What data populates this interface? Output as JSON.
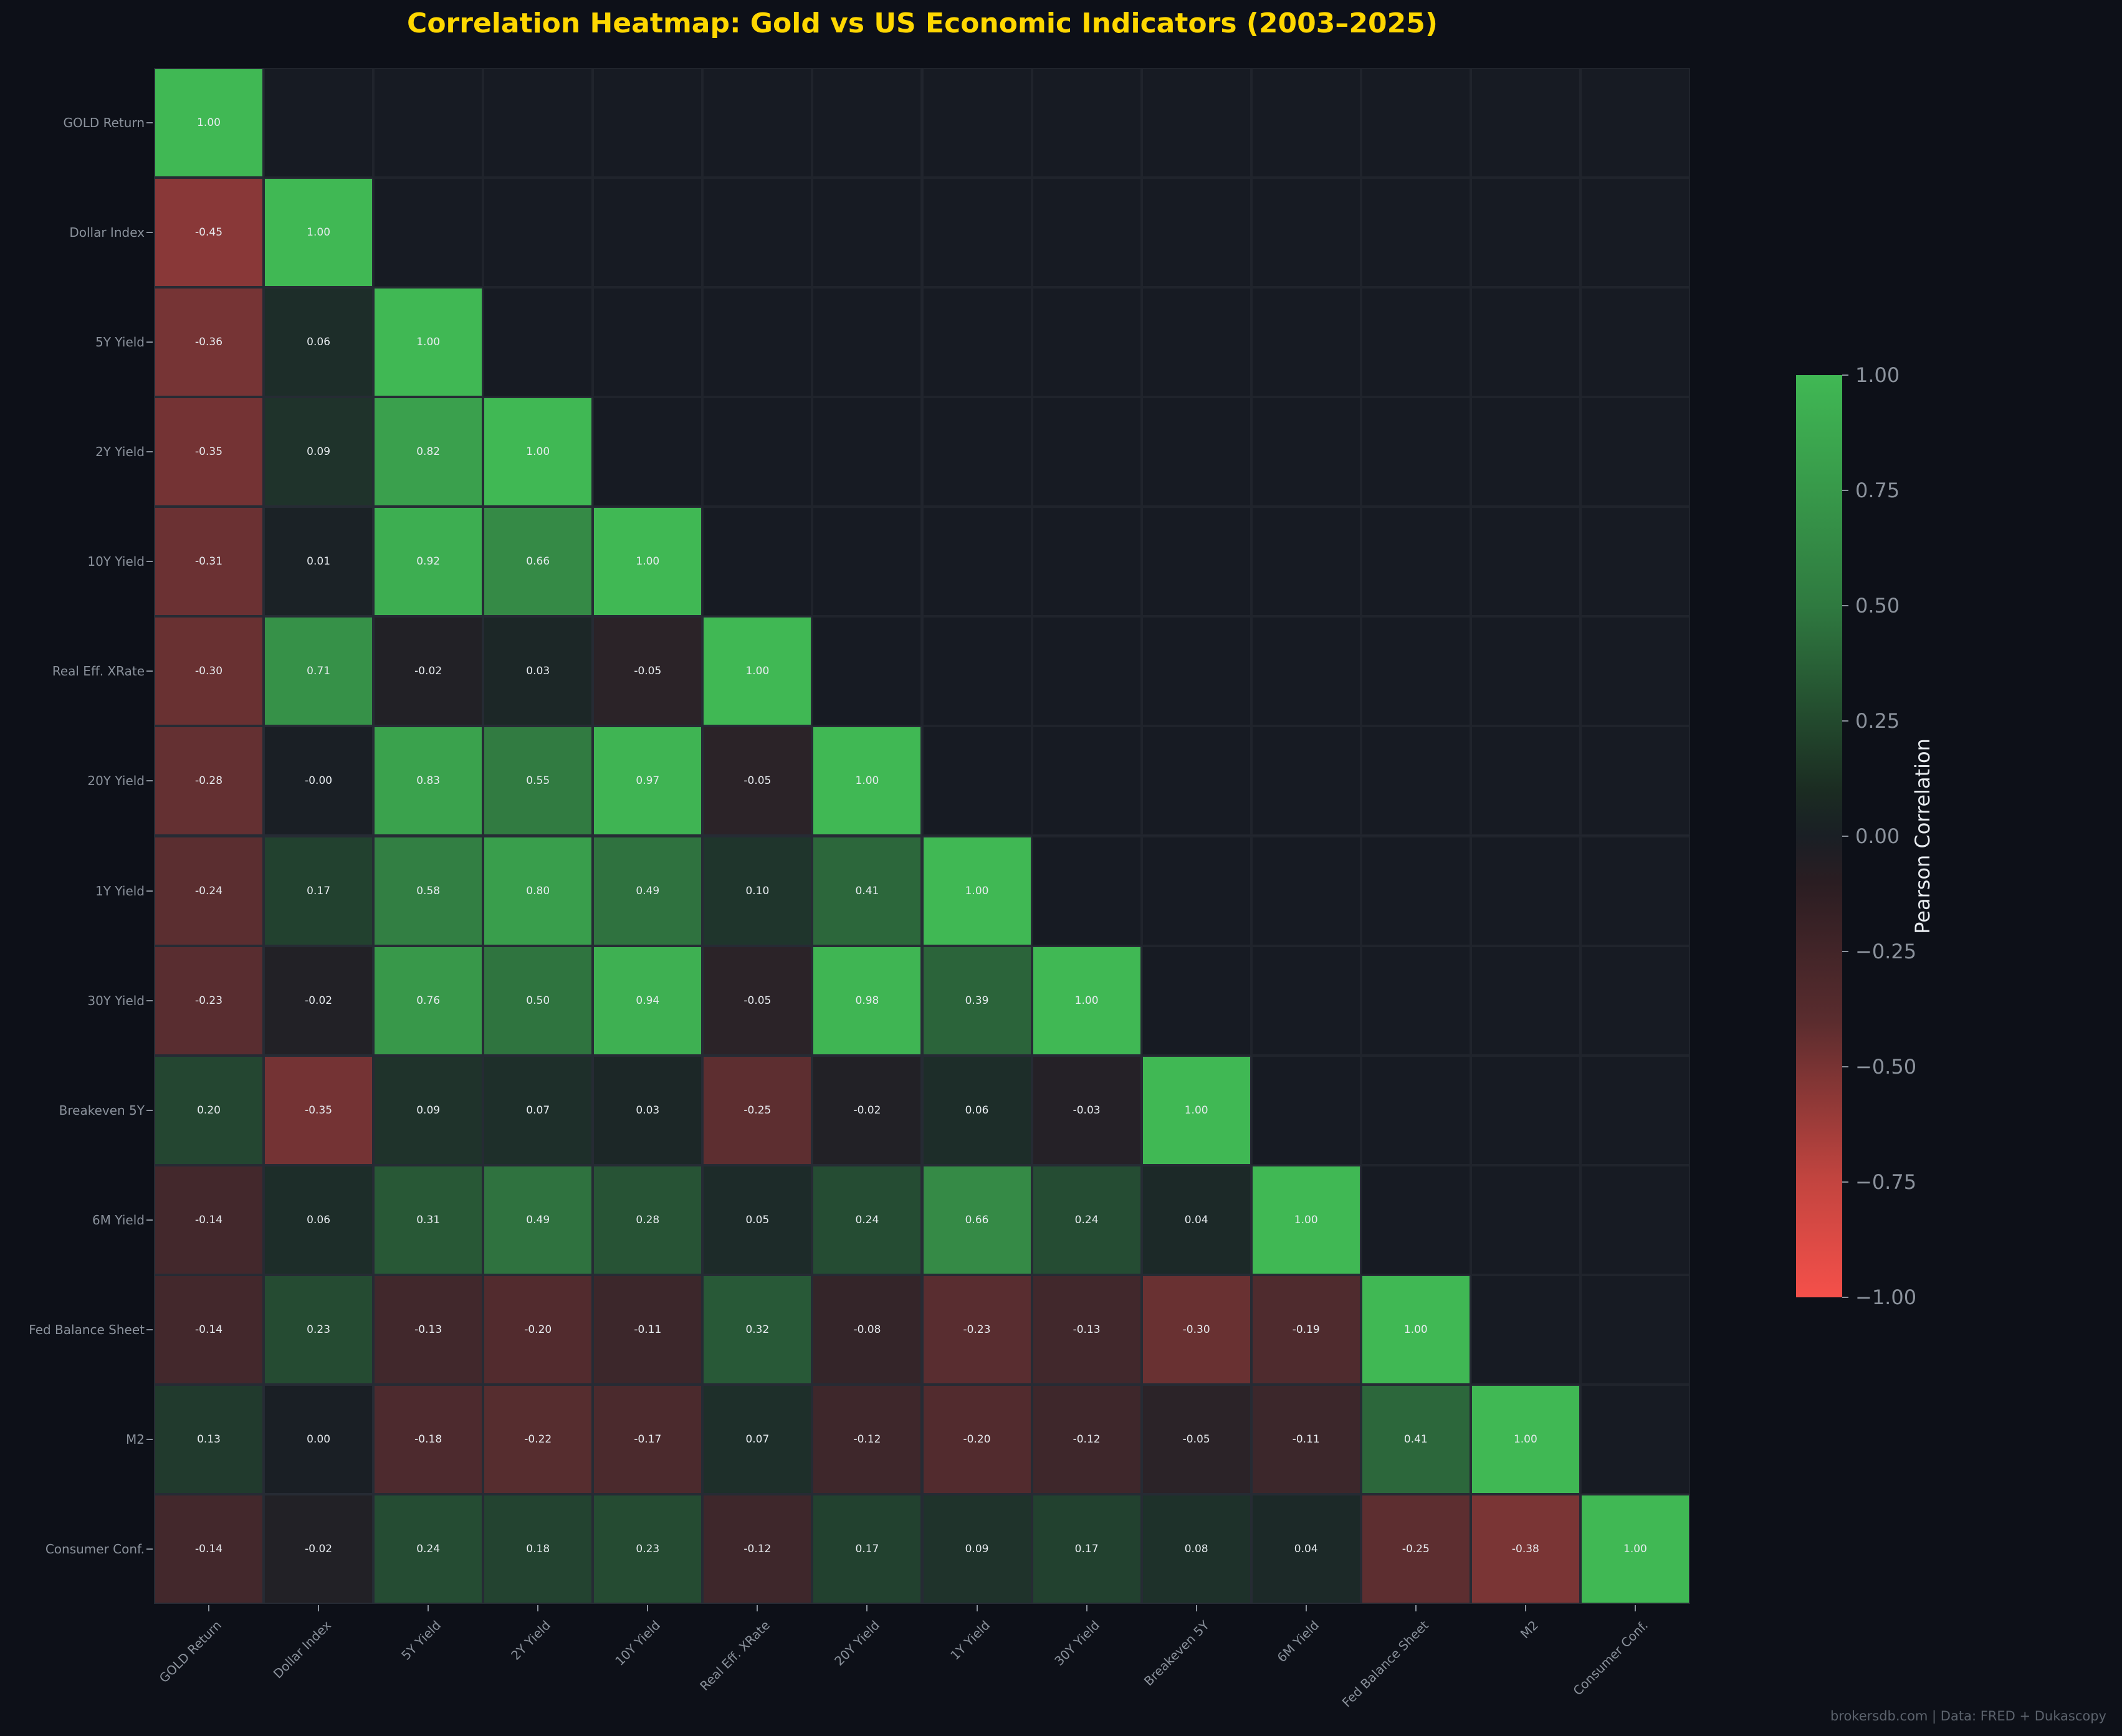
{
  "title": "Correlation Heatmap: Gold vs US Economic Indicators (2003–2025)",
  "footer": "brokersdb.com  |  Data: FRED + Dukascopy",
  "colors": {
    "background": "#0d1018",
    "title": "#ffd700",
    "masked_cell": "#171b23",
    "positive": "#40b854",
    "neutral": "#1a1f25",
    "negative": "#f5504a",
    "label": "#8b929c"
  },
  "colorbar": {
    "label": "Pearson Correlation",
    "ticks": [
      "1.00",
      "0.75",
      "0.50",
      "0.25",
      "0.00",
      "−0.25",
      "−0.50",
      "−0.75",
      "−1.00"
    ]
  },
  "chart_data": {
    "type": "heatmap",
    "title": "Correlation Heatmap: Gold vs US Economic Indicators (2003–2025)",
    "xlabel": "",
    "ylabel": "",
    "colorbar_label": "Pearson Correlation",
    "vrange": [
      -1,
      1
    ],
    "mask": "upper triangle (lower triangle + diagonal shown)",
    "labels": [
      "GOLD Return",
      "Dollar Index",
      "5Y Yield",
      "2Y Yield",
      "10Y Yield",
      "Real Eff. XRate",
      "20Y Yield",
      "1Y Yield",
      "30Y Yield",
      "Breakeven 5Y",
      "6M Yield",
      "Fed Balance Sheet",
      "M2",
      "Consumer Conf."
    ],
    "matrix": [
      [
        "1.00"
      ],
      [
        "-0.45",
        "1.00"
      ],
      [
        "-0.36",
        "0.06",
        "1.00"
      ],
      [
        "-0.35",
        "0.09",
        "0.82",
        "1.00"
      ],
      [
        "-0.31",
        "0.01",
        "0.92",
        "0.66",
        "1.00"
      ],
      [
        "-0.30",
        "0.71",
        "-0.02",
        "0.03",
        "-0.05",
        "1.00"
      ],
      [
        "-0.28",
        "-0.00",
        "0.83",
        "0.55",
        "0.97",
        "-0.05",
        "1.00"
      ],
      [
        "-0.24",
        "0.17",
        "0.58",
        "0.80",
        "0.49",
        "0.10",
        "0.41",
        "1.00"
      ],
      [
        "-0.23",
        "-0.02",
        "0.76",
        "0.50",
        "0.94",
        "-0.05",
        "0.98",
        "0.39",
        "1.00"
      ],
      [
        "0.20",
        "-0.35",
        "0.09",
        "0.07",
        "0.03",
        "-0.25",
        "-0.02",
        "0.06",
        "-0.03",
        "1.00"
      ],
      [
        "-0.14",
        "0.06",
        "0.31",
        "0.49",
        "0.28",
        "0.05",
        "0.24",
        "0.66",
        "0.24",
        "0.04",
        "1.00"
      ],
      [
        "-0.14",
        "0.23",
        "-0.13",
        "-0.20",
        "-0.11",
        "0.32",
        "-0.08",
        "-0.23",
        "-0.13",
        "-0.30",
        "-0.19",
        "1.00"
      ],
      [
        "0.13",
        "0.00",
        "-0.18",
        "-0.22",
        "-0.17",
        "0.07",
        "-0.12",
        "-0.20",
        "-0.12",
        "-0.05",
        "-0.11",
        "0.41",
        "1.00"
      ],
      [
        "-0.14",
        "-0.02",
        "0.24",
        "0.18",
        "0.23",
        "-0.12",
        "0.17",
        "0.09",
        "0.17",
        "0.08",
        "0.04",
        "-0.25",
        "-0.38",
        "1.00"
      ]
    ],
    "legend_position": "right (colorbar)",
    "grid": true
  }
}
